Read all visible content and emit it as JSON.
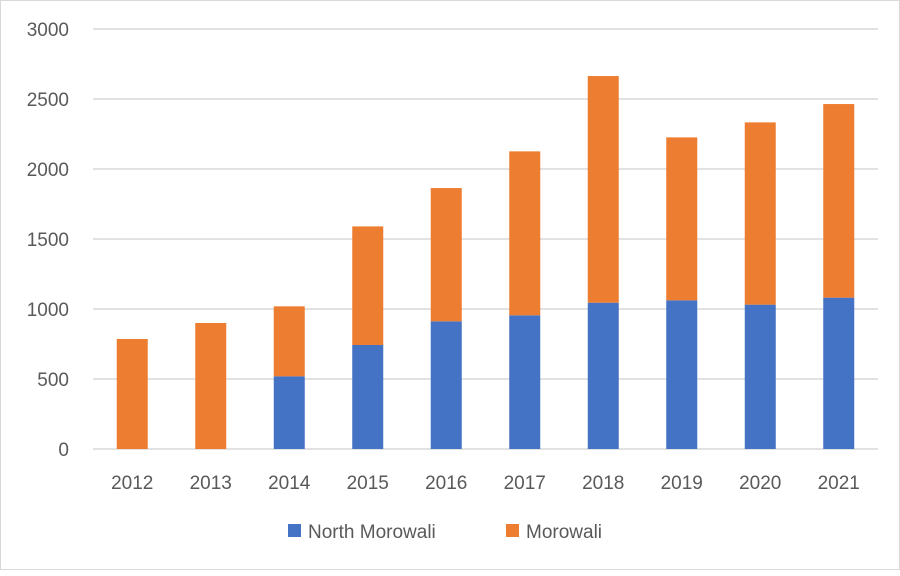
{
  "chart_data": {
    "type": "bar",
    "stacked": true,
    "categories": [
      "2012",
      "2013",
      "2014",
      "2015",
      "2016",
      "2017",
      "2018",
      "2019",
      "2020",
      "2021"
    ],
    "series": [
      {
        "name": "North Morowali",
        "color": "#4472C4",
        "values": [
          0,
          0,
          519,
          743,
          912,
          955,
          1045,
          1062,
          1031,
          1081
        ]
      },
      {
        "name": "Morowali",
        "color": "#ED7D31",
        "values": [
          786,
          900,
          500,
          847,
          952,
          1171,
          1619,
          1164,
          1302,
          1383
        ]
      }
    ],
    "ylim": [
      0,
      3000
    ],
    "yticks": [
      "0",
      "500",
      "1000",
      "1500",
      "2000",
      "2500",
      "3000"
    ],
    "grid": true,
    "legend": "bottom"
  }
}
